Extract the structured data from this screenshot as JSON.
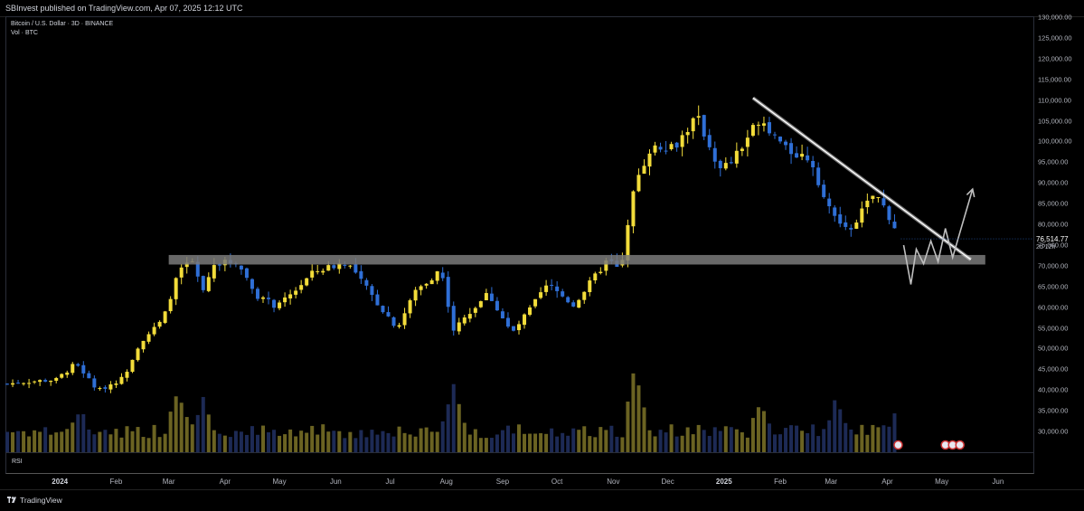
{
  "header": {
    "published": "SBInvest published on TradingView.com, Apr 07, 2025 12:12 UTC"
  },
  "legend": {
    "symbol": "Bitcoin / U.S. Dollar · 3D · BINANCE",
    "volume": "Vol · BTC"
  },
  "rsi_label": "RSI",
  "footer": {
    "brand": "TradingView"
  },
  "last_price": {
    "value": "76,514.77",
    "countdown": "2d 12h"
  },
  "colors": {
    "bull": "#f2dc3a",
    "bear": "#2f6fd6",
    "bull_volume": "#6b6322",
    "bear_volume": "#1d2a55",
    "background": "#000000",
    "resistance_line": "#d9d9d9",
    "support_zone": "#7a7a7a",
    "projection": "#bfbfbf"
  },
  "chart_data": {
    "type": "candlestick",
    "title": "Bitcoin / U.S. Dollar · 3D · BINANCE",
    "interval": "3D",
    "y_axis_side": "right",
    "ylim": [
      25000,
      130000
    ],
    "y_ticks": [
      "130,000.00",
      "125,000.00",
      "120,000.00",
      "115,000.00",
      "110,000.00",
      "105,000.00",
      "100,000.00",
      "95,000.00",
      "90,000.00",
      "85,000.00",
      "80,000.00",
      "75,000.00",
      "70,000.00",
      "65,000.00",
      "60,000.00",
      "55,000.00",
      "50,000.00",
      "45,000.00",
      "40,000.00",
      "35,000.00",
      "30,000.00"
    ],
    "x_ticks": [
      "2024",
      "Feb",
      "Mar",
      "Apr",
      "May",
      "Jun",
      "Jul",
      "Aug",
      "Sep",
      "Oct",
      "Nov",
      "Dec",
      "2025",
      "Feb",
      "Mar",
      "Apr",
      "May",
      "Jun"
    ],
    "x_range": [
      "2023-12-02",
      "2025-06-20"
    ],
    "month_starts": [
      "2024-01-01",
      "2024-02-01",
      "2024-03-01",
      "2024-04-01",
      "2024-05-01",
      "2024-06-01",
      "2024-07-01",
      "2024-08-01",
      "2024-09-01",
      "2024-10-01",
      "2024-11-01",
      "2024-12-01",
      "2025-01-01",
      "2025-02-01",
      "2025-03-01",
      "2025-04-01",
      "2025-05-01",
      "2025-06-01"
    ],
    "close_path": [
      [
        "2023-12-03",
        41500
      ],
      [
        "2023-12-13",
        42000
      ],
      [
        "2023-12-30",
        42500
      ],
      [
        "2024-01-10",
        46500
      ],
      [
        "2024-01-22",
        39800
      ],
      [
        "2024-02-05",
        43000
      ],
      [
        "2024-02-14",
        51500
      ],
      [
        "2024-02-27",
        57000
      ],
      [
        "2024-03-05",
        67000
      ],
      [
        "2024-03-13",
        72000
      ],
      [
        "2024-03-20",
        63500
      ],
      [
        "2024-03-26",
        70500
      ],
      [
        "2024-04-08",
        71000
      ],
      [
        "2024-04-18",
        63000
      ],
      [
        "2024-04-30",
        60000
      ],
      [
        "2024-05-20",
        68500
      ],
      [
        "2024-06-07",
        71000
      ],
      [
        "2024-06-24",
        61000
      ],
      [
        "2024-07-05",
        55000
      ],
      [
        "2024-07-15",
        64000
      ],
      [
        "2024-07-29",
        69000
      ],
      [
        "2024-08-05",
        54500
      ],
      [
        "2024-08-24",
        63500
      ],
      [
        "2024-09-06",
        53500
      ],
      [
        "2024-09-26",
        65500
      ],
      [
        "2024-10-10",
        60500
      ],
      [
        "2024-10-29",
        71500
      ],
      [
        "2024-11-05",
        68500
      ],
      [
        "2024-11-13",
        90000
      ],
      [
        "2024-11-22",
        99000
      ],
      [
        "2024-12-05",
        99000
      ],
      [
        "2024-12-17",
        106000
      ],
      [
        "2024-12-30",
        93000
      ],
      [
        "2025-01-07",
        96000
      ],
      [
        "2025-01-21",
        106000
      ],
      [
        "2025-02-04",
        98000
      ],
      [
        "2025-02-18",
        95800
      ],
      [
        "2025-02-27",
        84000
      ],
      [
        "2025-03-10",
        78000
      ],
      [
        "2025-03-25",
        87500
      ],
      [
        "2025-04-01",
        83000
      ],
      [
        "2025-04-07",
        76514.77
      ]
    ],
    "volume_series": "relative",
    "volume_peaks": [
      [
        "2024-01-12",
        0.35
      ],
      [
        "2024-03-06",
        0.5
      ],
      [
        "2024-03-20",
        0.42
      ],
      [
        "2024-08-05",
        0.56
      ],
      [
        "2024-11-13",
        0.7
      ],
      [
        "2025-01-21",
        0.42
      ],
      [
        "2025-03-04",
        0.45
      ],
      [
        "2025-04-07",
        0.4
      ]
    ],
    "annotations": [
      {
        "type": "horizontal_zone",
        "label": "support",
        "y_range": [
          70300,
          72600
        ],
        "x_range": [
          "2024-03-01",
          "2025-05-25"
        ]
      },
      {
        "type": "trendline",
        "label": "descending resistance",
        "points": [
          [
            "2025-01-17",
            110500
          ],
          [
            "2025-05-17",
            71500
          ]
        ]
      },
      {
        "type": "projection_path",
        "points": [
          [
            "2025-04-10",
            75000
          ],
          [
            "2025-04-14",
            65500
          ],
          [
            "2025-04-17",
            74000
          ],
          [
            "2025-04-21",
            70500
          ],
          [
            "2025-04-25",
            76000
          ],
          [
            "2025-04-29",
            71000
          ],
          [
            "2025-05-03",
            79000
          ],
          [
            "2025-05-07",
            72000
          ],
          [
            "2025-05-11",
            78000
          ],
          [
            "2025-05-18",
            88500
          ]
        ]
      }
    ],
    "volume_pane_label": "Vol · BTC",
    "lower_pane": "RSI"
  }
}
